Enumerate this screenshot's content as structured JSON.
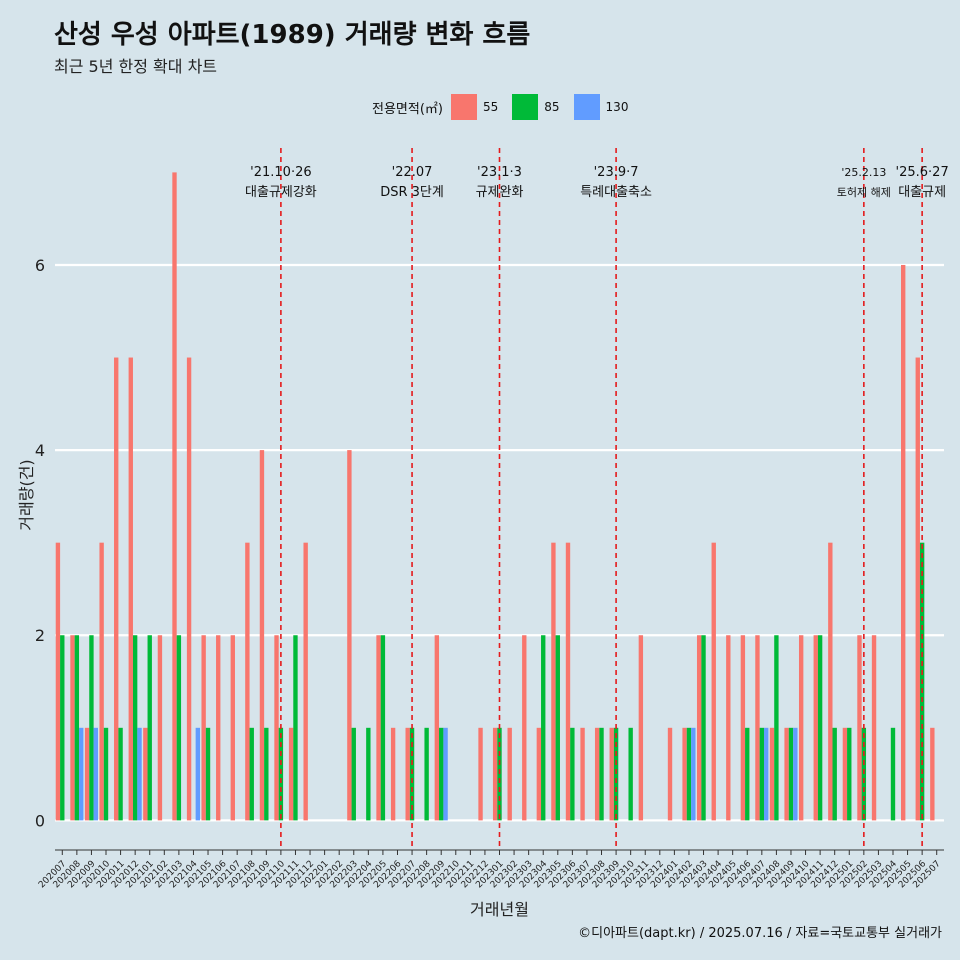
{
  "title": "산성 우성 아파트(1989) 거래량 변화 흐름",
  "subtitle": "최근 5년 한정 확대 차트",
  "caption": "©디아파트(dapt.kr) / 2025.07.16 / 자료=국토교통부 실거래가",
  "legend": {
    "title": "전용면적(㎡)",
    "items": [
      {
        "label": "55",
        "color": "#f8766d"
      },
      {
        "label": "85",
        "color": "#00ba38"
      },
      {
        "label": "130",
        "color": "#619cff"
      }
    ]
  },
  "chart_data": {
    "type": "bar",
    "xlabel": "거래년월",
    "ylabel": "거래량(건)",
    "yticks": [
      0,
      2,
      4,
      6
    ],
    "ylim": [
      -0.32,
      7.35
    ],
    "grid": true,
    "legend_position": "top",
    "categories": [
      "202007",
      "202008",
      "202009",
      "202010",
      "202011",
      "202012",
      "202101",
      "202102",
      "202103",
      "202104",
      "202105",
      "202106",
      "202107",
      "202108",
      "202109",
      "202110",
      "202111",
      "202112",
      "202201",
      "202202",
      "202203",
      "202204",
      "202205",
      "202206",
      "202207",
      "202208",
      "202209",
      "202210",
      "202211",
      "202212",
      "202301",
      "202302",
      "202303",
      "202304",
      "202305",
      "202306",
      "202307",
      "202308",
      "202309",
      "202310",
      "202311",
      "202312",
      "202401",
      "202402",
      "202403",
      "202404",
      "202405",
      "202406",
      "202407",
      "202408",
      "202409",
      "202410",
      "202411",
      "202412",
      "202501",
      "202502",
      "202503",
      "202504",
      "202505",
      "202506",
      "202507"
    ],
    "series": [
      {
        "name": "55",
        "color": "#f8766d",
        "values": [
          3,
          2,
          1,
          3,
          5,
          5,
          1,
          2,
          7,
          5,
          2,
          2,
          2,
          3,
          4,
          2,
          1,
          3,
          0,
          0,
          4,
          0,
          2,
          1,
          1,
          0,
          2,
          0,
          0,
          1,
          1,
          1,
          2,
          1,
          3,
          3,
          1,
          1,
          1,
          0,
          2,
          0,
          1,
          1,
          2,
          3,
          2,
          2,
          2,
          1,
          1,
          2,
          2,
          3,
          1,
          2,
          2,
          0,
          6,
          5,
          1
        ]
      },
      {
        "name": "85",
        "color": "#00ba38",
        "values": [
          2,
          2,
          2,
          1,
          1,
          2,
          2,
          0,
          2,
          0,
          1,
          0,
          0,
          1,
          1,
          1,
          2,
          0,
          0,
          0,
          1,
          1,
          2,
          0,
          1,
          1,
          1,
          0,
          0,
          0,
          1,
          0,
          0,
          2,
          2,
          1,
          0,
          1,
          1,
          1,
          0,
          0,
          0,
          1,
          2,
          0,
          0,
          1,
          1,
          2,
          1,
          0,
          2,
          1,
          1,
          1,
          0,
          1,
          0,
          3,
          0
        ]
      },
      {
        "name": "130",
        "color": "#619cff",
        "values": [
          0,
          1,
          1,
          0,
          0,
          1,
          0,
          0,
          0,
          1,
          0,
          0,
          0,
          0,
          0,
          0,
          0,
          0,
          0,
          0,
          0,
          0,
          0,
          0,
          0,
          0,
          1,
          0,
          0,
          0,
          0,
          0,
          0,
          0,
          0,
          0,
          0,
          0,
          0,
          0,
          0,
          0,
          0,
          1,
          0,
          0,
          0,
          0,
          1,
          0,
          1,
          0,
          0,
          0,
          0,
          0,
          0,
          0,
          0,
          0,
          0
        ]
      }
    ],
    "annotations": [
      {
        "x": "202110",
        "date": "'21.10·26",
        "text": "대출규제강화"
      },
      {
        "x": "202207",
        "date": "'22.07",
        "text": "DSR 3단계"
      },
      {
        "x": "202301",
        "date": "'23.1·3",
        "text": "규제완화"
      },
      {
        "x": "202309",
        "date": "'23.9·7",
        "text": "특례대출축소"
      },
      {
        "x": "202502",
        "date": "'25.2.13",
        "text": "토허제 해제"
      },
      {
        "x": "202506",
        "date": "'25.6·27",
        "text": "대출규제"
      }
    ]
  }
}
